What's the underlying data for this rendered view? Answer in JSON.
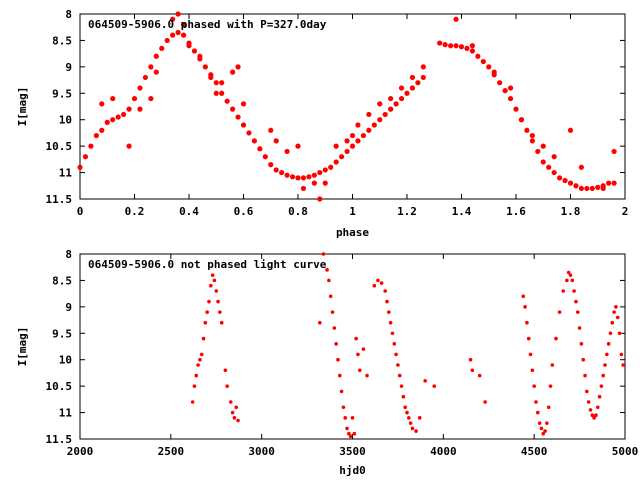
{
  "chart_data": [
    {
      "type": "scatter",
      "title": "064509-5906.0 phased with P=327.0day",
      "xlabel": "phase",
      "ylabel": "I[mag]",
      "xlim": [
        0,
        2
      ],
      "ylim": [
        11.5,
        8
      ],
      "y_inverted": true,
      "xticks": [
        "0",
        "0.2",
        "0.4",
        "0.6",
        "0.8",
        "1",
        "1.2",
        "1.4",
        "1.6",
        "1.8",
        "2"
      ],
      "yticks": [
        "8",
        "8.5",
        "9",
        "9.5",
        "10",
        "10.5",
        "11",
        "11.5"
      ],
      "color": "#ff0000",
      "series": [
        {
          "x": [
            0.0,
            0.02,
            0.04,
            0.06,
            0.08,
            0.1,
            0.12,
            0.14,
            0.16,
            0.18,
            0.2,
            0.22,
            0.24,
            0.26,
            0.28,
            0.3,
            0.32,
            0.34,
            0.36,
            0.38,
            0.4,
            0.42,
            0.44,
            0.46,
            0.48,
            0.5,
            0.52,
            0.54,
            0.56,
            0.58,
            0.6,
            0.62,
            0.64,
            0.66,
            0.68,
            0.7,
            0.72,
            0.74,
            0.76,
            0.78,
            0.8,
            0.82,
            0.84,
            0.86,
            0.88,
            0.9,
            0.92,
            0.94,
            0.96,
            0.98,
            1.0,
            1.02,
            1.04,
            1.06,
            1.08,
            1.1,
            1.12,
            1.14,
            1.16,
            1.18,
            1.2,
            1.22,
            1.24,
            1.26,
            1.32,
            1.34,
            1.36,
            1.38,
            1.4,
            1.42,
            1.44,
            1.46,
            1.48,
            1.5,
            1.52,
            1.54,
            1.56,
            1.58,
            1.6,
            1.62,
            1.64,
            1.66,
            1.68,
            1.7,
            1.72,
            1.74,
            1.76,
            1.78,
            1.8,
            1.82,
            1.84,
            1.86,
            1.88,
            1.9,
            1.92,
            1.94,
            1.96
          ],
          "y": [
            10.9,
            10.7,
            10.5,
            10.3,
            10.2,
            10.05,
            10.0,
            9.95,
            9.9,
            9.8,
            9.6,
            9.4,
            9.2,
            9.0,
            8.8,
            8.65,
            8.5,
            8.4,
            8.35,
            8.4,
            8.55,
            8.7,
            8.85,
            9.0,
            9.15,
            9.3,
            9.5,
            9.65,
            9.8,
            9.95,
            10.1,
            10.25,
            10.4,
            10.55,
            10.7,
            10.85,
            10.95,
            11.0,
            11.05,
            11.08,
            11.1,
            11.1,
            11.08,
            11.05,
            11.0,
            10.95,
            10.9,
            10.8,
            10.7,
            10.6,
            10.5,
            10.4,
            10.3,
            10.2,
            10.1,
            10.0,
            9.9,
            9.8,
            9.7,
            9.6,
            9.5,
            9.4,
            9.3,
            9.2,
            8.55,
            8.58,
            8.6,
            8.6,
            8.62,
            8.65,
            8.7,
            8.8,
            8.9,
            9.0,
            9.15,
            9.3,
            9.45,
            9.6,
            9.8,
            10.0,
            10.2,
            10.4,
            10.6,
            10.8,
            10.9,
            11.0,
            11.1,
            11.15,
            11.2,
            11.25,
            11.3,
            11.3,
            11.3,
            11.28,
            11.25,
            11.2,
            11.2
          ]
        },
        {
          "x": [
            0.08,
            0.12,
            0.18,
            0.22,
            0.26,
            0.28,
            0.34,
            0.36,
            0.38,
            0.4,
            0.44,
            0.48,
            0.5,
            0.52,
            0.56,
            0.58,
            0.6,
            0.7,
            0.72,
            0.76,
            0.8,
            0.82,
            0.86,
            0.88,
            0.9,
            0.94,
            0.98,
            1.0,
            1.02,
            1.06,
            1.1,
            1.14,
            1.18,
            1.22,
            1.26,
            1.38,
            1.44,
            1.52,
            1.58,
            1.62,
            1.66,
            1.7,
            1.74,
            1.8,
            1.84,
            1.92,
            1.96
          ],
          "y": [
            9.7,
            9.6,
            10.5,
            9.8,
            9.6,
            9.1,
            8.1,
            8.0,
            8.2,
            8.6,
            8.8,
            9.2,
            9.5,
            9.3,
            9.1,
            9.0,
            9.7,
            10.2,
            10.4,
            10.6,
            10.5,
            11.3,
            11.2,
            11.5,
            11.2,
            10.5,
            10.4,
            10.3,
            10.1,
            9.9,
            9.7,
            9.6,
            9.4,
            9.2,
            9.0,
            8.1,
            8.6,
            9.1,
            9.4,
            10.0,
            10.3,
            10.5,
            10.7,
            10.2,
            10.9,
            11.3,
            10.6
          ]
        }
      ]
    },
    {
      "type": "scatter",
      "title": "064509-5906.0 not phased light curve",
      "xlabel": "hjd0",
      "ylabel": "I[mag]",
      "xlim": [
        2000,
        5000
      ],
      "ylim": [
        11.5,
        8
      ],
      "y_inverted": true,
      "xticks": [
        "2000",
        "2500",
        "3000",
        "3500",
        "4000",
        "4500",
        "5000"
      ],
      "yticks": [
        "8",
        "8.5",
        "9",
        "9.5",
        "10",
        "10.5",
        "11",
        "11.5"
      ],
      "color": "#ff0000",
      "series": [
        {
          "x": [
            2620,
            2630,
            2640,
            2650,
            2660,
            2670,
            2680,
            2690,
            2700,
            2710,
            2720,
            2730,
            2740,
            2750,
            2760,
            2770,
            2780,
            2800,
            2810,
            2830,
            2840,
            2850,
            2860,
            2870,
            3320,
            3340,
            3360,
            3370,
            3380,
            3390,
            3400,
            3410,
            3420,
            3430,
            3440,
            3450,
            3460,
            3470,
            3480,
            3490,
            3500,
            3510,
            3520,
            3530,
            3540,
            3560,
            3580,
            3620,
            3640,
            3660,
            3680,
            3690,
            3700,
            3710,
            3720,
            3730,
            3740,
            3750,
            3760,
            3770,
            3780,
            3790,
            3800,
            3810,
            3820,
            3830,
            3850,
            3870,
            3900,
            3950,
            4150,
            4160,
            4200,
            4230,
            4440,
            4450,
            4460,
            4470,
            4480,
            4490,
            4500,
            4510,
            4520,
            4530,
            4540,
            4550,
            4560,
            4570,
            4580,
            4590,
            4600,
            4620,
            4640,
            4660,
            4680,
            4690,
            4700,
            4710,
            4720,
            4730,
            4740,
            4750,
            4760,
            4770,
            4780,
            4790,
            4800,
            4810,
            4820,
            4830,
            4840,
            4850,
            4860,
            4870,
            4880,
            4890,
            4900,
            4910,
            4920,
            4930,
            4940,
            4950,
            4960,
            4970,
            4980,
            4990
          ],
          "y": [
            10.8,
            10.5,
            10.3,
            10.1,
            10.0,
            9.9,
            9.6,
            9.3,
            9.1,
            8.9,
            8.6,
            8.4,
            8.5,
            8.7,
            8.9,
            9.1,
            9.3,
            10.2,
            10.5,
            10.8,
            11.0,
            11.1,
            10.9,
            11.15,
            9.3,
            8.0,
            8.3,
            8.5,
            8.8,
            9.1,
            9.4,
            9.7,
            10.0,
            10.3,
            10.6,
            10.9,
            11.1,
            11.3,
            11.4,
            11.45,
            11.1,
            11.4,
            9.6,
            9.9,
            10.2,
            9.8,
            10.3,
            8.6,
            8.5,
            8.55,
            8.7,
            8.9,
            9.1,
            9.3,
            9.5,
            9.7,
            9.9,
            10.1,
            10.3,
            10.5,
            10.7,
            10.9,
            11.0,
            11.1,
            11.2,
            11.3,
            11.35,
            11.1,
            10.4,
            10.5,
            10.0,
            10.2,
            10.3,
            10.8,
            8.8,
            9.0,
            9.3,
            9.6,
            9.9,
            10.2,
            10.5,
            10.8,
            11.0,
            11.2,
            11.3,
            11.4,
            11.35,
            11.2,
            10.9,
            10.5,
            10.1,
            9.6,
            9.1,
            8.7,
            8.5,
            8.35,
            8.4,
            8.5,
            8.7,
            8.9,
            9.1,
            9.4,
            9.7,
            10.0,
            10.3,
            10.6,
            10.8,
            10.95,
            11.05,
            11.1,
            11.05,
            10.9,
            10.7,
            10.5,
            10.3,
            10.1,
            9.9,
            9.7,
            9.5,
            9.3,
            9.1,
            9.0,
            9.2,
            9.5,
            9.9,
            10.1
          ]
        }
      ]
    }
  ]
}
